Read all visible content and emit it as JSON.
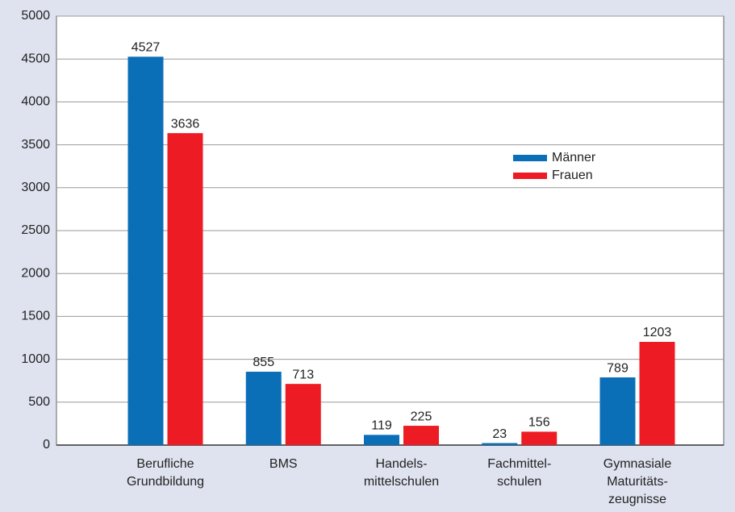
{
  "chart_data": {
    "type": "bar",
    "categories": [
      "Berufliche\nGrundbildung",
      "BMS",
      "Handels-\nmittelschulen",
      "Fachmittel-\nschulen",
      "Gymnasiale\nMaturitäts-\nzeugnisse"
    ],
    "series": [
      {
        "name": "Männer",
        "color": "#0a6fb7",
        "values": [
          4527,
          855,
          119,
          23,
          789
        ]
      },
      {
        "name": "Frauen",
        "color": "#ed1c24",
        "values": [
          3636,
          713,
          225,
          156,
          1203
        ]
      }
    ],
    "ylim": [
      0,
      5000
    ],
    "yticks": [
      0,
      500,
      1000,
      1500,
      2000,
      2500,
      3000,
      3500,
      4000,
      4500,
      5000
    ],
    "grid": true
  }
}
